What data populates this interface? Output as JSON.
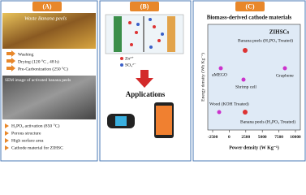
{
  "panels": [
    {
      "header": "(A)",
      "photo_label": "Waste Banana peels",
      "steps": [
        "Washing",
        "Drying (120 °C , 48 h)",
        "Pre-Carbonization (250 °C)"
      ],
      "sem_label": "SEM image of activated banana peels",
      "features": [
        "H₃PO₄ activation (850 °C)",
        "Porous structure",
        "High surface area",
        "Cathode material for ZIHSC"
      ]
    },
    {
      "header": "(B)",
      "legend": [
        "Zn²⁺",
        "SO₄²⁻"
      ],
      "caption": "Applications"
    },
    {
      "header": "(C)",
      "title": "Biomass-derived cathode materials",
      "tag": "ZIHSCs",
      "points": [
        "Banana peels (H₃PO₄ Treated)",
        "aMEGO",
        "Shrimp cell",
        "Graphene",
        "Wood (KOH Treated)",
        "Banana peels (H₃PO₄ Treated)"
      ],
      "y_label": "Energy density (Wh Kg⁻¹)",
      "x_label": "Power density (W Kg⁻¹)",
      "xticks": [
        -2500,
        0,
        2500,
        5000,
        7500,
        10000
      ]
    }
  ]
}
